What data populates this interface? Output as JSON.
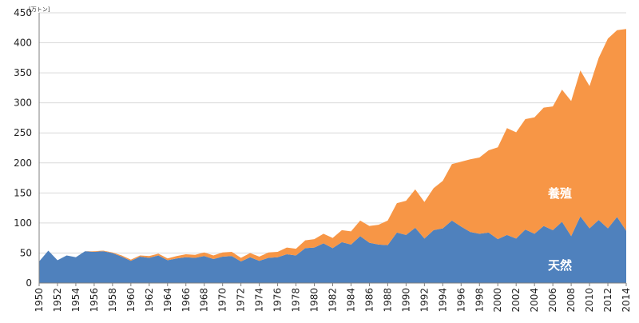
{
  "chart_data": {
    "type": "area",
    "stacked": true,
    "unit_label": "[万トン]",
    "y_ticks": [
      0,
      50,
      100,
      150,
      200,
      250,
      300,
      350,
      400,
      450
    ],
    "ylim": [
      0,
      450
    ],
    "x_tick_labels": [
      "1950",
      "1952",
      "1954",
      "1956",
      "1958",
      "1960",
      "1962",
      "1964",
      "1966",
      "1968",
      "1970",
      "1972",
      "1974",
      "1976",
      "1978",
      "1980",
      "1982",
      "1984",
      "1986",
      "1988",
      "1990",
      "1992",
      "1994",
      "1996",
      "1998",
      "2000",
      "2002",
      "2004",
      "2006",
      "2008",
      "2010",
      "2012",
      "2014"
    ],
    "xlim": [
      1950,
      2014
    ],
    "grid": "horizontal",
    "x": [
      1950,
      1951,
      1952,
      1953,
      1954,
      1955,
      1956,
      1957,
      1958,
      1959,
      1960,
      1961,
      1962,
      1963,
      1964,
      1965,
      1966,
      1967,
      1968,
      1969,
      1970,
      1971,
      1972,
      1973,
      1974,
      1975,
      1976,
      1977,
      1978,
      1979,
      1980,
      1981,
      1982,
      1983,
      1984,
      1985,
      1986,
      1987,
      1988,
      1989,
      1990,
      1991,
      1992,
      1993,
      1994,
      1995,
      1996,
      1997,
      1998,
      1999,
      2000,
      2001,
      2002,
      2003,
      2004,
      2005,
      2006,
      2007,
      2008,
      2009,
      2010,
      2011,
      2012,
      2013,
      2014
    ],
    "series": [
      {
        "name": "天然",
        "color": "#4f81bd",
        "values": [
          36,
          54,
          38,
          46,
          43,
          53,
          52,
          53,
          50,
          44,
          37,
          44,
          42,
          46,
          38,
          41,
          43,
          42,
          45,
          40,
          44,
          45,
          36,
          43,
          37,
          42,
          43,
          48,
          46,
          58,
          59,
          66,
          58,
          68,
          64,
          78,
          67,
          64,
          63,
          84,
          80,
          92,
          74,
          88,
          91,
          104,
          94,
          85,
          82,
          84,
          73,
          80,
          74,
          89,
          82,
          95,
          88,
          102,
          78,
          111,
          91,
          105,
          91,
          110,
          87
        ]
      },
      {
        "name": "養殖",
        "color": "#f79646",
        "values": [
          0,
          0,
          0,
          0,
          0,
          0,
          1,
          1,
          1,
          2,
          2,
          2,
          3,
          3,
          3,
          4,
          5,
          5,
          6,
          6,
          7,
          7,
          6,
          7,
          7,
          9,
          9,
          11,
          11,
          13,
          14,
          16,
          17,
          20,
          22,
          26,
          28,
          33,
          41,
          49,
          57,
          64,
          61,
          70,
          79,
          94,
          108,
          121,
          127,
          137,
          153,
          178,
          177,
          184,
          194,
          197,
          206,
          220,
          225,
          243,
          237,
          270,
          316,
          311,
          336
        ]
      }
    ]
  }
}
